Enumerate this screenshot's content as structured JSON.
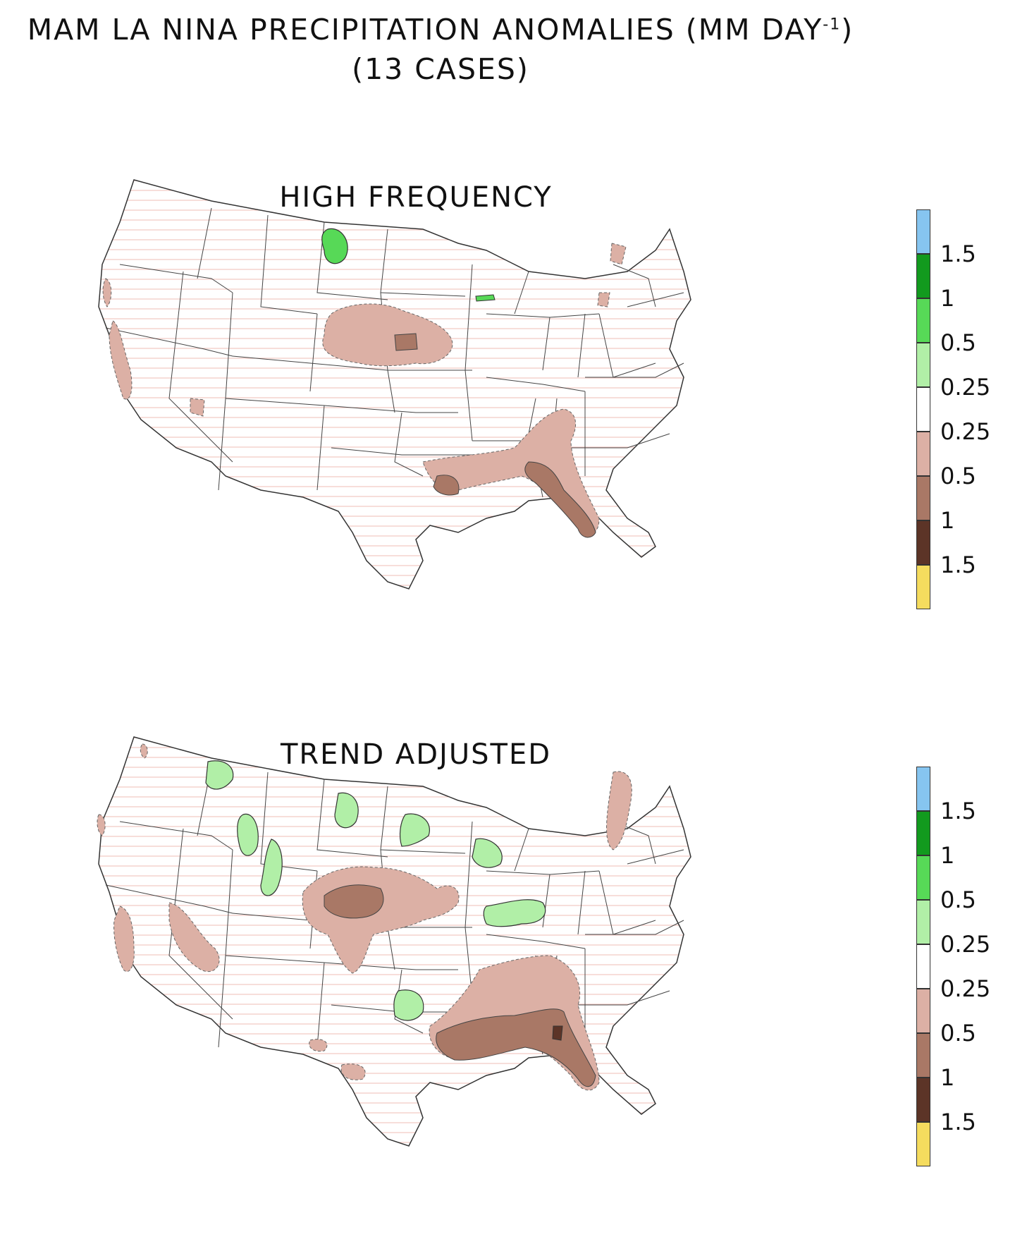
{
  "title": {
    "line1_main": "MAM LA NINA PRECIPITATION ANOMALIES (MM DAY",
    "line1_sup": "-1",
    "line1_close": ")",
    "line2": "(13 CASES)"
  },
  "panels": [
    {
      "id": "high-frequency",
      "title": "HIGH FREQUENCY"
    },
    {
      "id": "trend-adjusted",
      "title": "TREND ADJUSTED"
    }
  ],
  "legend": {
    "colors": [
      "#86c5f0",
      "#129a1e",
      "#57d957",
      "#b1efa7",
      "#ffffff",
      "#dcb0a5",
      "#a97866",
      "#5c3427",
      "#f5dc5e"
    ],
    "labels": [
      "1.5",
      "1",
      "0.5",
      "0.25",
      "0.25",
      "0.5",
      "1",
      "1.5"
    ]
  },
  "colors": {
    "dry_light": "#dcb0a5",
    "dry_mid": "#a97866",
    "dry_dark": "#5c3427",
    "wet_light": "#b1efa7",
    "wet_mid": "#57d957",
    "hatch": "#f2c9c3",
    "boundary": "#333333"
  }
}
